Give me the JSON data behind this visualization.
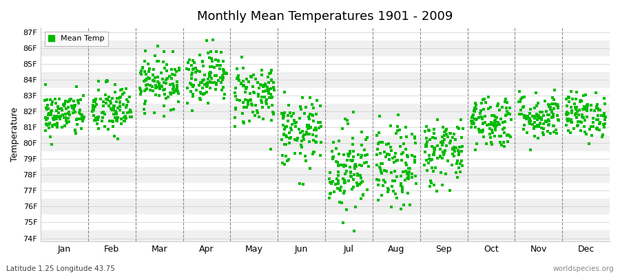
{
  "title": "Monthly Mean Temperatures 1901 - 2009",
  "ylabel": "Temperature",
  "xlabel_months": [
    "Jan",
    "Feb",
    "Mar",
    "Apr",
    "May",
    "Jun",
    "Jul",
    "Aug",
    "Sep",
    "Oct",
    "Nov",
    "Dec"
  ],
  "ytick_labels": [
    "74F",
    "75F",
    "76F",
    "77F",
    "78F",
    "79F",
    "80F",
    "81F",
    "82F",
    "83F",
    "84F",
    "85F",
    "86F",
    "87F"
  ],
  "ytick_values": [
    74,
    75,
    76,
    77,
    78,
    79,
    80,
    81,
    82,
    83,
    84,
    85,
    86,
    87
  ],
  "ylim": [
    73.8,
    87.3
  ],
  "legend_label": "Mean Temp",
  "marker_color": "#00bb00",
  "marker": "s",
  "marker_size": 2.5,
  "bg_color": "#ffffff",
  "band_colors": [
    "#f0f0f0",
    "#ffffff"
  ],
  "subtitle_left": "Latitude 1.25 Longitude 43.75",
  "subtitle_right": "worldspecies.org",
  "n_years": 109,
  "monthly_means": [
    81.8,
    82.1,
    83.9,
    84.3,
    83.1,
    80.6,
    78.5,
    78.4,
    79.5,
    81.4,
    81.7,
    81.8
  ],
  "monthly_stds": [
    0.7,
    0.85,
    0.8,
    0.85,
    1.0,
    1.1,
    1.4,
    1.3,
    1.1,
    0.85,
    0.75,
    0.7
  ],
  "random_seed": 42
}
